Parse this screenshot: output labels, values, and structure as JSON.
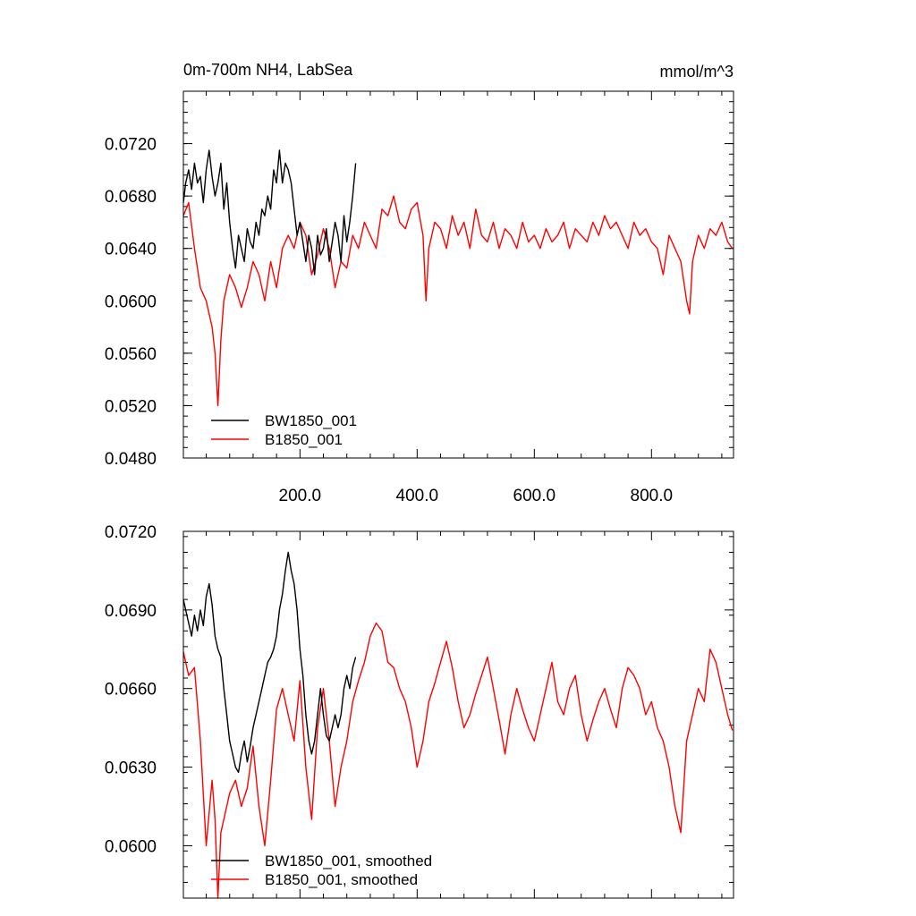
{
  "chart_data": [
    {
      "type": "line",
      "title": "0m-700m NH4, LabSea",
      "units": "mmol/m^3",
      "xlim": [
        1,
        940
      ],
      "ylim": [
        0.048,
        0.076
      ],
      "x_ticks": [
        {
          "value": 200,
          "label": "200.0"
        },
        {
          "value": 400,
          "label": "400.0"
        },
        {
          "value": 600,
          "label": "600.0"
        },
        {
          "value": 800,
          "label": "800.0"
        }
      ],
      "y_ticks": [
        {
          "value": 0.048,
          "label": "0.0480"
        },
        {
          "value": 0.052,
          "label": "0.0520"
        },
        {
          "value": 0.056,
          "label": "0.0560"
        },
        {
          "value": 0.06,
          "label": "0.0600"
        },
        {
          "value": 0.064,
          "label": "0.0640"
        },
        {
          "value": 0.068,
          "label": "0.0680"
        },
        {
          "value": 0.072,
          "label": "0.0720"
        }
      ],
      "legend_position": "bottom-left",
      "series": [
        {
          "name": "BW1850_001",
          "color": "#000000",
          "x": [
            1,
            5,
            10,
            15,
            20,
            25,
            30,
            35,
            40,
            45,
            50,
            55,
            60,
            65,
            70,
            75,
            80,
            85,
            90,
            95,
            100,
            105,
            110,
            115,
            120,
            125,
            130,
            135,
            140,
            145,
            150,
            155,
            160,
            165,
            170,
            175,
            180,
            185,
            190,
            195,
            200,
            205,
            210,
            215,
            220,
            225,
            230,
            235,
            240,
            245,
            250,
            255,
            260,
            265,
            270,
            275,
            280,
            285,
            290,
            295
          ],
          "y": [
            0.0675,
            0.069,
            0.07,
            0.0685,
            0.0705,
            0.069,
            0.0695,
            0.0675,
            0.07,
            0.0715,
            0.0695,
            0.068,
            0.069,
            0.0705,
            0.067,
            0.069,
            0.066,
            0.064,
            0.0625,
            0.065,
            0.064,
            0.063,
            0.0655,
            0.0645,
            0.064,
            0.066,
            0.065,
            0.067,
            0.0665,
            0.068,
            0.067,
            0.07,
            0.069,
            0.0715,
            0.069,
            0.0705,
            0.07,
            0.069,
            0.067,
            0.065,
            0.066,
            0.0645,
            0.063,
            0.065,
            0.064,
            0.062,
            0.065,
            0.0635,
            0.064,
            0.0655,
            0.063,
            0.0645,
            0.066,
            0.065,
            0.063,
            0.0665,
            0.0645,
            0.066,
            0.068,
            0.0705
          ]
        },
        {
          "name": "B1850_001",
          "color": "#ff0000",
          "x": [
            1,
            10,
            20,
            30,
            40,
            50,
            55,
            60,
            65,
            70,
            80,
            90,
            100,
            110,
            120,
            130,
            140,
            150,
            160,
            170,
            180,
            190,
            200,
            210,
            220,
            230,
            240,
            250,
            260,
            270,
            280,
            290,
            300,
            310,
            320,
            330,
            340,
            350,
            360,
            370,
            380,
            390,
            400,
            410,
            415,
            420,
            430,
            440,
            450,
            460,
            470,
            480,
            490,
            500,
            510,
            520,
            530,
            540,
            550,
            560,
            570,
            580,
            590,
            600,
            610,
            620,
            630,
            640,
            650,
            660,
            670,
            680,
            690,
            700,
            710,
            720,
            730,
            740,
            750,
            760,
            770,
            780,
            790,
            800,
            810,
            820,
            830,
            840,
            850,
            860,
            865,
            870,
            880,
            890,
            900,
            910,
            920,
            930,
            938
          ],
          "y": [
            0.0665,
            0.0675,
            0.064,
            0.061,
            0.06,
            0.058,
            0.056,
            0.052,
            0.057,
            0.06,
            0.062,
            0.061,
            0.0595,
            0.061,
            0.063,
            0.062,
            0.06,
            0.063,
            0.061,
            0.064,
            0.065,
            0.064,
            0.066,
            0.065,
            0.062,
            0.0635,
            0.0655,
            0.064,
            0.061,
            0.063,
            0.0625,
            0.065,
            0.064,
            0.066,
            0.065,
            0.064,
            0.067,
            0.0665,
            0.068,
            0.066,
            0.0655,
            0.067,
            0.0675,
            0.065,
            0.06,
            0.064,
            0.066,
            0.0655,
            0.064,
            0.0665,
            0.065,
            0.066,
            0.064,
            0.067,
            0.065,
            0.0645,
            0.066,
            0.064,
            0.0655,
            0.065,
            0.064,
            0.066,
            0.0645,
            0.065,
            0.064,
            0.0655,
            0.0645,
            0.065,
            0.066,
            0.064,
            0.0655,
            0.065,
            0.0645,
            0.066,
            0.065,
            0.0665,
            0.0655,
            0.066,
            0.065,
            0.064,
            0.066,
            0.065,
            0.0655,
            0.0645,
            0.064,
            0.062,
            0.065,
            0.064,
            0.063,
            0.06,
            0.059,
            0.063,
            0.065,
            0.064,
            0.0655,
            0.065,
            0.066,
            0.0645,
            0.064
          ]
        }
      ]
    },
    {
      "type": "line",
      "title": "",
      "units": "",
      "xlim": [
        1,
        940
      ],
      "ylim": [
        0.058,
        0.072
      ],
      "x_ticks": [
        {
          "value": 200,
          "label": ""
        },
        {
          "value": 400,
          "label": ""
        },
        {
          "value": 600,
          "label": ""
        },
        {
          "value": 800,
          "label": ""
        }
      ],
      "y_ticks": [
        {
          "value": 0.06,
          "label": "0.0600"
        },
        {
          "value": 0.063,
          "label": "0.0630"
        },
        {
          "value": 0.066,
          "label": "0.0660"
        },
        {
          "value": 0.069,
          "label": "0.0690"
        },
        {
          "value": 0.072,
          "label": "0.0720"
        }
      ],
      "legend_position": "bottom-left",
      "series": [
        {
          "name": "BW1850_001, smoothed",
          "color": "#000000",
          "x": [
            1,
            5,
            10,
            15,
            20,
            25,
            30,
            35,
            40,
            45,
            50,
            55,
            60,
            65,
            70,
            75,
            80,
            85,
            90,
            95,
            100,
            105,
            110,
            115,
            120,
            125,
            130,
            135,
            140,
            145,
            150,
            155,
            160,
            165,
            170,
            175,
            180,
            185,
            190,
            195,
            200,
            205,
            210,
            215,
            220,
            225,
            230,
            235,
            240,
            245,
            250,
            255,
            260,
            265,
            270,
            275,
            280,
            285,
            290,
            295
          ],
          "y": [
            0.0694,
            0.069,
            0.0685,
            0.068,
            0.0688,
            0.0682,
            0.069,
            0.0684,
            0.0695,
            0.07,
            0.0692,
            0.068,
            0.0675,
            0.0672,
            0.066,
            0.065,
            0.064,
            0.0635,
            0.063,
            0.0628,
            0.0635,
            0.064,
            0.0632,
            0.0638,
            0.0645,
            0.065,
            0.0655,
            0.066,
            0.0665,
            0.067,
            0.0672,
            0.0675,
            0.068,
            0.069,
            0.0696,
            0.0705,
            0.0712,
            0.0705,
            0.07,
            0.069,
            0.0675,
            0.0665,
            0.065,
            0.064,
            0.0635,
            0.064,
            0.065,
            0.066,
            0.065,
            0.0642,
            0.064,
            0.0645,
            0.065,
            0.0645,
            0.065,
            0.066,
            0.0665,
            0.066,
            0.0668,
            0.0672
          ]
        },
        {
          "name": "B1850_001, smoothed",
          "color": "#ff0000",
          "x": [
            1,
            10,
            20,
            30,
            40,
            50,
            55,
            60,
            65,
            70,
            80,
            90,
            100,
            110,
            120,
            130,
            140,
            150,
            160,
            170,
            180,
            190,
            200,
            210,
            220,
            230,
            240,
            250,
            260,
            270,
            280,
            290,
            300,
            310,
            320,
            330,
            340,
            350,
            360,
            370,
            380,
            390,
            400,
            410,
            420,
            430,
            440,
            450,
            460,
            470,
            480,
            490,
            500,
            510,
            520,
            530,
            540,
            550,
            560,
            570,
            580,
            590,
            600,
            610,
            620,
            630,
            640,
            650,
            660,
            670,
            680,
            690,
            700,
            710,
            720,
            730,
            740,
            750,
            760,
            770,
            780,
            790,
            800,
            810,
            820,
            830,
            840,
            850,
            860,
            870,
            880,
            890,
            900,
            910,
            920,
            930,
            938
          ],
          "y": [
            0.0674,
            0.0665,
            0.0668,
            0.064,
            0.06,
            0.0625,
            0.061,
            0.058,
            0.0605,
            0.061,
            0.062,
            0.0625,
            0.0615,
            0.0622,
            0.0638,
            0.0615,
            0.06,
            0.0625,
            0.0652,
            0.066,
            0.065,
            0.064,
            0.0663,
            0.063,
            0.061,
            0.0645,
            0.066,
            0.064,
            0.0615,
            0.063,
            0.064,
            0.0655,
            0.0663,
            0.067,
            0.068,
            0.0685,
            0.0682,
            0.067,
            0.0668,
            0.066,
            0.0655,
            0.0645,
            0.063,
            0.064,
            0.0655,
            0.0662,
            0.067,
            0.0678,
            0.0668,
            0.0655,
            0.0645,
            0.065,
            0.0658,
            0.0665,
            0.0672,
            0.066,
            0.0648,
            0.0635,
            0.065,
            0.066,
            0.0652,
            0.0645,
            0.064,
            0.065,
            0.066,
            0.067,
            0.0655,
            0.065,
            0.066,
            0.0665,
            0.065,
            0.064,
            0.0648,
            0.0655,
            0.066,
            0.0652,
            0.0645,
            0.066,
            0.0668,
            0.0665,
            0.066,
            0.065,
            0.0655,
            0.0645,
            0.064,
            0.063,
            0.0615,
            0.0605,
            0.064,
            0.065,
            0.066,
            0.0655,
            0.0675,
            0.067,
            0.066,
            0.065,
            0.0644
          ]
        }
      ]
    }
  ]
}
